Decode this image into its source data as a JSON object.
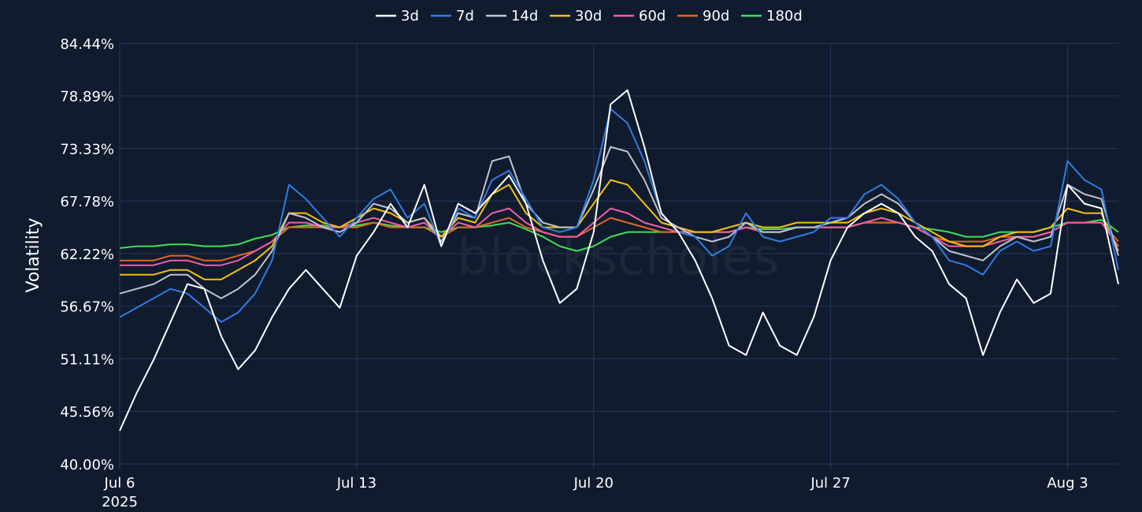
{
  "chart_data": {
    "type": "line",
    "ylabel": "Volatility",
    "watermark": "blockscholes",
    "ylim": [
      40.0,
      84.44
    ],
    "y_ticks": [
      "40.00%",
      "45.56%",
      "51.11%",
      "56.67%",
      "62.22%",
      "67.78%",
      "73.33%",
      "78.89%",
      "84.44%"
    ],
    "y_tick_values": [
      40.0,
      45.56,
      51.11,
      56.67,
      62.22,
      67.78,
      73.33,
      78.89,
      84.44
    ],
    "x_ticks": [
      {
        "label": "Jul 6",
        "sublabel": "2025",
        "date": "2025-07-06"
      },
      {
        "label": "Jul 13",
        "sublabel": "",
        "date": "2025-07-13"
      },
      {
        "label": "Jul 20",
        "sublabel": "",
        "date": "2025-07-20"
      },
      {
        "label": "Jul 27",
        "sublabel": "",
        "date": "2025-07-27"
      },
      {
        "label": "Aug 3",
        "sublabel": "",
        "date": "2025-08-03"
      }
    ],
    "xlim": [
      "2025-07-06 00:00",
      "2025-08-04 12:00"
    ],
    "grid": true,
    "legend_position": "top-center",
    "x": [
      "2025-07-06 00:00",
      "2025-07-06 12:00",
      "2025-07-07 00:00",
      "2025-07-07 12:00",
      "2025-07-08 00:00",
      "2025-07-08 12:00",
      "2025-07-09 00:00",
      "2025-07-09 12:00",
      "2025-07-10 00:00",
      "2025-07-10 12:00",
      "2025-07-11 00:00",
      "2025-07-11 12:00",
      "2025-07-12 00:00",
      "2025-07-12 12:00",
      "2025-07-13 00:00",
      "2025-07-13 12:00",
      "2025-07-14 00:00",
      "2025-07-14 12:00",
      "2025-07-15 00:00",
      "2025-07-15 12:00",
      "2025-07-16 00:00",
      "2025-07-16 12:00",
      "2025-07-17 00:00",
      "2025-07-17 12:00",
      "2025-07-18 00:00",
      "2025-07-18 12:00",
      "2025-07-19 00:00",
      "2025-07-19 12:00",
      "2025-07-20 00:00",
      "2025-07-20 12:00",
      "2025-07-21 00:00",
      "2025-07-21 12:00",
      "2025-07-22 00:00",
      "2025-07-22 12:00",
      "2025-07-23 00:00",
      "2025-07-23 12:00",
      "2025-07-24 00:00",
      "2025-07-24 12:00",
      "2025-07-25 00:00",
      "2025-07-25 12:00",
      "2025-07-26 00:00",
      "2025-07-26 12:00",
      "2025-07-27 00:00",
      "2025-07-27 12:00",
      "2025-07-28 00:00",
      "2025-07-28 12:00",
      "2025-07-29 00:00",
      "2025-07-29 12:00",
      "2025-07-30 00:00",
      "2025-07-30 12:00",
      "2025-07-31 00:00",
      "2025-07-31 12:00",
      "2025-08-01 00:00",
      "2025-08-01 12:00",
      "2025-08-02 00:00",
      "2025-08-02 12:00",
      "2025-08-03 00:00",
      "2025-08-03 12:00",
      "2025-08-04 00:00",
      "2025-08-04 12:00"
    ],
    "series": [
      {
        "name": "3d",
        "color": "#ffffff",
        "values": [
          43.5,
          47.5,
          51.0,
          55.0,
          59.0,
          58.5,
          53.5,
          50.0,
          52.0,
          55.5,
          58.5,
          60.5,
          58.5,
          56.5,
          62.0,
          64.5,
          67.5,
          65.0,
          69.5,
          63.0,
          67.5,
          66.5,
          68.5,
          70.5,
          67.5,
          61.5,
          57.0,
          58.5,
          64.5,
          78.0,
          79.5,
          73.5,
          66.5,
          64.5,
          61.5,
          57.5,
          52.5,
          51.5,
          56.0,
          52.5,
          51.5,
          55.5,
          61.5,
          65.0,
          66.5,
          67.5,
          66.5,
          64.0,
          62.5,
          59.0,
          57.5,
          51.5,
          56.0,
          59.5,
          57.0,
          58.0,
          69.5,
          67.5,
          67.0,
          59.0
        ]
      },
      {
        "name": "7d",
        "color": "#2f7de1",
        "values": [
          55.5,
          56.5,
          57.5,
          58.5,
          58.0,
          56.5,
          55.0,
          56.0,
          58.0,
          61.5,
          69.5,
          68.0,
          66.0,
          64.0,
          66.0,
          68.0,
          69.0,
          66.0,
          67.5,
          63.0,
          67.0,
          66.0,
          70.0,
          71.0,
          68.0,
          65.0,
          64.5,
          65.0,
          70.0,
          77.5,
          76.0,
          72.0,
          66.5,
          64.5,
          64.0,
          62.0,
          63.0,
          66.5,
          64.0,
          63.5,
          64.0,
          64.5,
          66.0,
          66.0,
          68.5,
          69.5,
          68.0,
          65.5,
          64.0,
          61.5,
          61.0,
          60.0,
          62.5,
          63.5,
          62.5,
          63.0,
          72.0,
          70.0,
          69.0,
          60.5
        ]
      },
      {
        "name": "14d",
        "color": "#c0c4cc",
        "values": [
          58.0,
          58.5,
          59.0,
          60.0,
          60.0,
          58.5,
          57.5,
          58.5,
          60.0,
          62.5,
          66.5,
          66.0,
          65.0,
          64.5,
          65.5,
          67.5,
          67.0,
          65.5,
          66.0,
          63.5,
          66.5,
          66.0,
          72.0,
          72.5,
          67.5,
          65.5,
          65.0,
          65.0,
          69.0,
          73.5,
          73.0,
          70.0,
          66.0,
          65.0,
          64.0,
          63.5,
          64.0,
          65.5,
          64.5,
          64.5,
          65.0,
          65.0,
          65.5,
          66.0,
          67.5,
          68.5,
          67.5,
          65.5,
          64.0,
          62.5,
          62.0,
          61.5,
          63.0,
          64.0,
          63.5,
          64.0,
          69.5,
          68.5,
          68.0,
          62.0
        ]
      },
      {
        "name": "30d",
        "color": "#f4c20d",
        "values": [
          60.0,
          60.0,
          60.0,
          60.5,
          60.5,
          59.5,
          59.5,
          60.5,
          61.5,
          63.0,
          66.5,
          66.5,
          65.5,
          65.0,
          66.0,
          67.0,
          66.5,
          65.5,
          66.0,
          64.0,
          66.0,
          65.5,
          68.5,
          69.5,
          66.5,
          65.0,
          65.0,
          65.0,
          67.5,
          70.0,
          69.5,
          67.5,
          65.5,
          65.0,
          64.5,
          64.5,
          65.0,
          65.5,
          65.0,
          65.0,
          65.5,
          65.5,
          65.5,
          65.5,
          66.5,
          67.0,
          66.5,
          65.5,
          64.5,
          63.5,
          63.0,
          63.0,
          64.0,
          64.5,
          64.5,
          65.0,
          67.0,
          66.5,
          66.5,
          62.5
        ]
      },
      {
        "name": "60d",
        "color": "#ef5fa7",
        "values": [
          61.0,
          61.0,
          61.0,
          61.5,
          61.5,
          61.0,
          61.0,
          61.5,
          62.5,
          63.5,
          65.5,
          65.5,
          65.0,
          65.0,
          65.5,
          66.0,
          65.5,
          65.0,
          65.5,
          64.0,
          65.5,
          65.0,
          66.5,
          67.0,
          65.5,
          64.5,
          64.0,
          64.0,
          65.5,
          67.0,
          66.5,
          65.5,
          65.0,
          64.5,
          64.5,
          64.5,
          64.5,
          65.0,
          64.5,
          64.5,
          65.0,
          65.0,
          65.0,
          65.0,
          65.5,
          66.0,
          65.5,
          65.0,
          64.0,
          63.0,
          63.0,
          63.0,
          63.5,
          64.0,
          64.0,
          64.5,
          65.5,
          65.5,
          65.5,
          63.0
        ]
      },
      {
        "name": "90d",
        "color": "#e0691f",
        "values": [
          61.5,
          61.5,
          61.5,
          62.0,
          62.0,
          61.5,
          61.5,
          62.0,
          62.5,
          63.5,
          65.0,
          65.0,
          65.0,
          65.0,
          65.0,
          65.5,
          65.0,
          65.0,
          65.0,
          64.0,
          65.0,
          65.0,
          65.5,
          66.0,
          65.0,
          64.5,
          64.0,
          64.0,
          65.0,
          66.0,
          65.5,
          65.0,
          64.5,
          64.5,
          64.5,
          64.5,
          64.5,
          65.0,
          64.5,
          64.5,
          65.0,
          65.0,
          65.0,
          65.0,
          65.5,
          65.5,
          65.5,
          65.0,
          64.0,
          63.5,
          63.5,
          63.5,
          64.0,
          64.0,
          64.0,
          64.5,
          65.5,
          65.5,
          65.5,
          63.5
        ]
      },
      {
        "name": "180d",
        "color": "#3ee05a",
        "values": [
          62.8,
          63.0,
          63.0,
          63.2,
          63.2,
          63.0,
          63.0,
          63.2,
          63.8,
          64.2,
          65.0,
          65.2,
          65.2,
          65.0,
          65.2,
          65.5,
          65.2,
          65.0,
          65.0,
          64.5,
          65.0,
          65.0,
          65.2,
          65.5,
          64.8,
          64.0,
          63.0,
          62.5,
          63.0,
          64.0,
          64.5,
          64.5,
          64.5,
          64.5,
          64.5,
          64.5,
          64.5,
          65.0,
          64.8,
          64.8,
          65.0,
          65.0,
          65.0,
          65.0,
          65.5,
          65.5,
          65.5,
          65.0,
          64.8,
          64.5,
          64.0,
          64.0,
          64.5,
          64.5,
          64.5,
          65.0,
          65.5,
          65.5,
          65.8,
          64.5
        ]
      }
    ]
  }
}
